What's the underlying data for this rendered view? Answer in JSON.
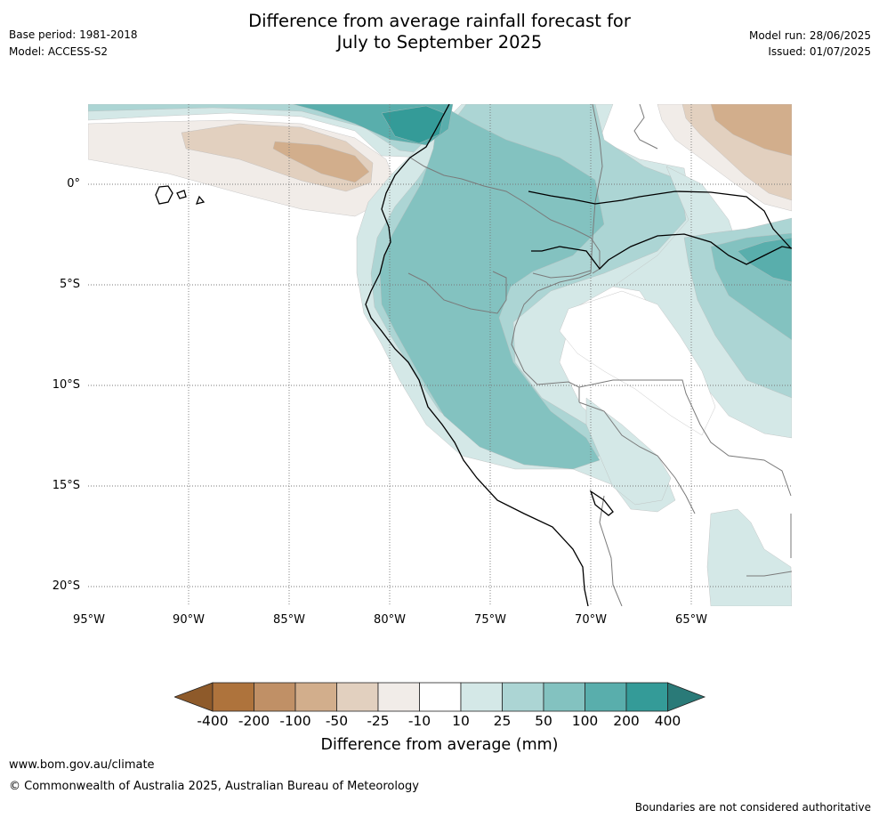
{
  "header": {
    "title_line1": "Difference from average rainfall forecast for",
    "title_line2": "July to September 2025",
    "base_period": "Base period: 1981-2018",
    "model": "Model: ACCESS-S2",
    "model_run": "Model run: 28/06/2025",
    "issued": "Issued: 01/07/2025"
  },
  "map": {
    "lon_labels": [
      "95°W",
      "90°W",
      "85°W",
      "80°W",
      "75°W",
      "70°W",
      "65°W"
    ],
    "lat_labels": [
      "0°",
      "5°S",
      "10°S",
      "15°S",
      "20°S"
    ],
    "lon_range": [
      -95,
      -60
    ],
    "lat_range": [
      4,
      -21
    ],
    "gridlines": true,
    "colors": {
      "neg400": "#8e5a2a",
      "neg200": "#ae733c",
      "neg100": "#c09066",
      "neg50": "#d2ae8c",
      "neg25": "#e2d0bf",
      "neg10": "#f1ece8",
      "neutral": "#ffffff",
      "pos10": "#d4e8e7",
      "pos25": "#acd5d4",
      "pos50": "#83c2c0",
      "pos100": "#59aeac",
      "pos200": "#349b98",
      "pos400": "#2a7a78"
    }
  },
  "colorbar": {
    "tick_labels": [
      "-400",
      "-200",
      "-100",
      "-50",
      "-25",
      "-10",
      "10",
      "25",
      "50",
      "100",
      "200",
      "400"
    ],
    "label": "Difference from average (mm)"
  },
  "footer": {
    "url": "www.bom.gov.au/climate",
    "copyright": "© Commonwealth of Australia 2025, Australian Bureau of Meteorology",
    "disclaimer": "Boundaries are not considered authoritative"
  }
}
